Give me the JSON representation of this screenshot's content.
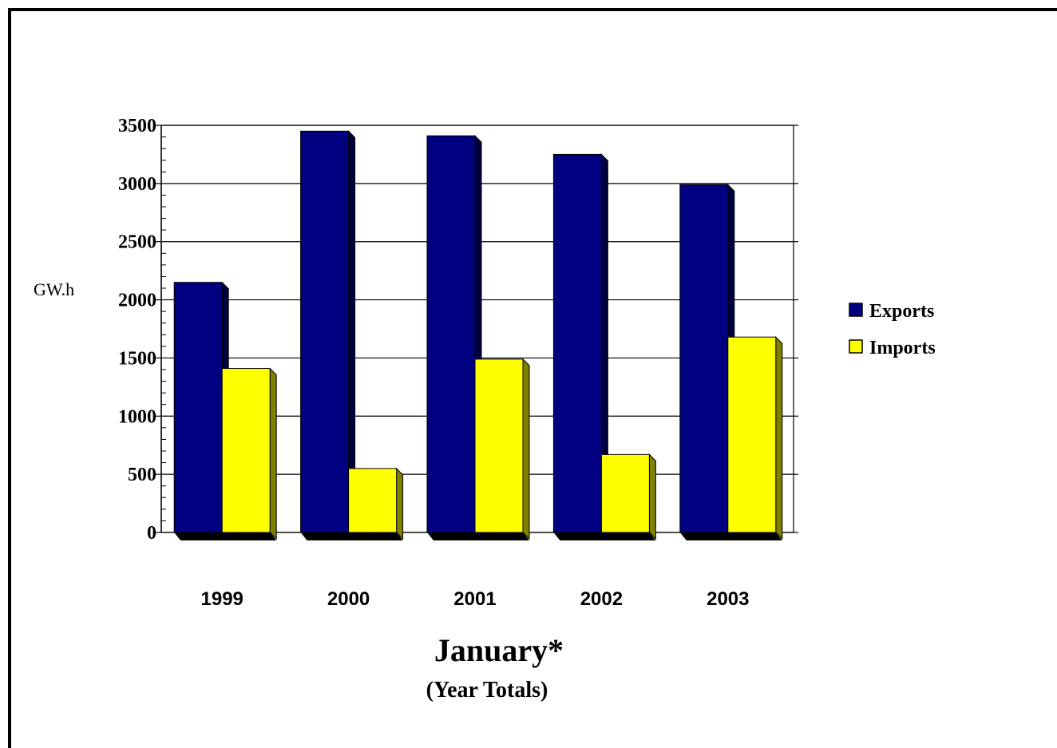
{
  "chart_data": {
    "type": "bar",
    "title": "January*",
    "subtitle": "(Year Totals)",
    "ylabel": "GW.h",
    "xlabel": "",
    "categories": [
      "1999",
      "2000",
      "2001",
      "2002",
      "2003"
    ],
    "series": [
      {
        "name": "Exports",
        "values": [
          2150,
          3450,
          3410,
          3250,
          2990
        ],
        "color": "#000080",
        "dark": "#000040"
      },
      {
        "name": "Imports",
        "values": [
          1410,
          550,
          1490,
          670,
          1680
        ],
        "color": "#ffff00",
        "dark": "#808000"
      }
    ],
    "ylim": [
      0,
      3500
    ],
    "yticks": [
      "0",
      "500",
      "1000",
      "1500",
      "2000",
      "2500",
      "3000",
      "3500"
    ],
    "grid": true,
    "legend": "right"
  }
}
